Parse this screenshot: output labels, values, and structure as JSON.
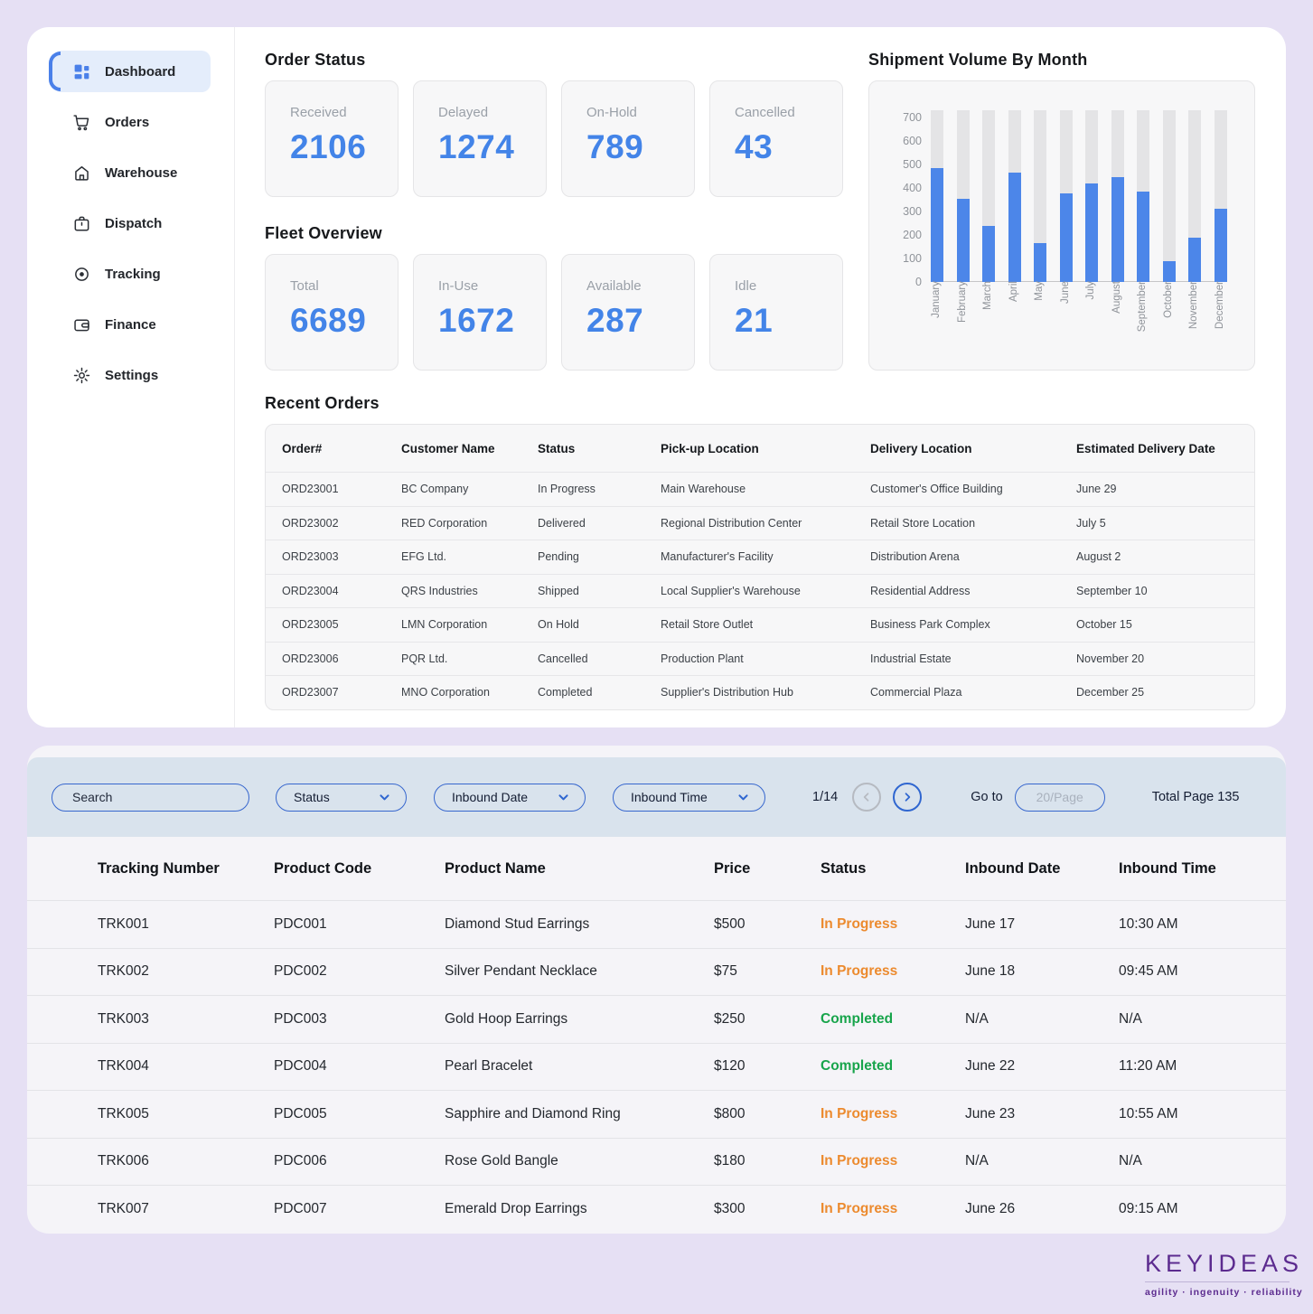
{
  "sidebar": {
    "items": [
      {
        "label": "Dashboard",
        "icon": "dashboard-icon",
        "active": true
      },
      {
        "label": "Orders",
        "icon": "cart-icon",
        "active": false
      },
      {
        "label": "Warehouse",
        "icon": "warehouse-icon",
        "active": false
      },
      {
        "label": "Dispatch",
        "icon": "briefcase-icon",
        "active": false
      },
      {
        "label": "Tracking",
        "icon": "tracking-icon",
        "active": false
      },
      {
        "label": "Finance",
        "icon": "wallet-icon",
        "active": false
      },
      {
        "label": "Settings",
        "icon": "gear-icon",
        "active": false
      }
    ]
  },
  "order_status": {
    "title": "Order Status",
    "cards": [
      {
        "label": "Received",
        "value": "2106"
      },
      {
        "label": "Delayed",
        "value": "1274"
      },
      {
        "label": "On-Hold",
        "value": "789"
      },
      {
        "label": "Cancelled",
        "value": "43"
      }
    ]
  },
  "fleet_overview": {
    "title": "Fleet Overview",
    "cards": [
      {
        "label": "Total",
        "value": "6689"
      },
      {
        "label": "In-Use",
        "value": "1672"
      },
      {
        "label": "Available",
        "value": "287"
      },
      {
        "label": "Idle",
        "value": "21"
      }
    ]
  },
  "chart_data": {
    "type": "bar",
    "title": "Shipment Volume By Month",
    "categories": [
      "January",
      "February",
      "March",
      "April",
      "May",
      "June",
      "July",
      "August",
      "September",
      "October",
      "November",
      "December"
    ],
    "values": [
      485,
      355,
      240,
      465,
      165,
      375,
      420,
      445,
      385,
      90,
      190,
      310
    ],
    "xlabel": "",
    "ylabel": "",
    "ylim": [
      0,
      730
    ],
    "yticks": [
      0,
      100,
      200,
      300,
      400,
      500,
      600,
      700
    ],
    "track_max": 730,
    "bar_color": "#4C86E9",
    "track_color": "#E4E4E6",
    "grid": false,
    "legend_position": "none"
  },
  "recent_orders": {
    "title": "Recent Orders",
    "columns": [
      "Order#",
      "Customer Name",
      "Status",
      "Pick-up Location",
      "Delivery Location",
      "Estimated Delivery Date"
    ],
    "rows": [
      {
        "order": "ORD23001",
        "customer": "BC Company",
        "status": "In Progress",
        "pickup": "Main Warehouse",
        "delivery": "Customer's Office Building",
        "eta": "June 29"
      },
      {
        "order": "ORD23002",
        "customer": "RED Corporation",
        "status": "Delivered",
        "pickup": "Regional Distribution Center",
        "delivery": "Retail Store Location",
        "eta": "July 5"
      },
      {
        "order": "ORD23003",
        "customer": "EFG Ltd.",
        "status": "Pending",
        "pickup": "Manufacturer's Facility",
        "delivery": "Distribution Arena",
        "eta": "August 2"
      },
      {
        "order": "ORD23004",
        "customer": "QRS Industries",
        "status": "Shipped",
        "pickup": "Local Supplier's Warehouse",
        "delivery": "Residential Address",
        "eta": "September 10"
      },
      {
        "order": "ORD23005",
        "customer": "LMN Corporation",
        "status": "On Hold",
        "pickup": "Retail Store Outlet",
        "delivery": "Business Park Complex",
        "eta": "October 15"
      },
      {
        "order": "ORD23006",
        "customer": "PQR Ltd.",
        "status": "Cancelled",
        "pickup": "Production Plant",
        "delivery": "Industrial Estate",
        "eta": "November 20"
      },
      {
        "order": "ORD23007",
        "customer": "MNO Corporation",
        "status": "Completed",
        "pickup": "Supplier's Distribution Hub",
        "delivery": "Commercial Plaza",
        "eta": "December 25"
      }
    ]
  },
  "filter_bar": {
    "search_placeholder": "Search",
    "dropdowns": [
      "Status",
      "Inbound Date",
      "Inbound Time"
    ],
    "page_indicator": "1/14",
    "goto_label": "Go to",
    "per_page_placeholder": "20/Page",
    "total_label": "Total Page 135"
  },
  "tracking_table": {
    "columns": [
      "Tracking Number",
      "Product Code",
      "Product Name",
      "Price",
      "Status",
      "Inbound Date",
      "Inbound Time"
    ],
    "rows": [
      {
        "tracking": "TRK001",
        "code": "PDC001",
        "name": "Diamond Stud Earrings",
        "price": "$500",
        "status": "In Progress",
        "status_color": "#EC8A2E",
        "date": "June 17",
        "time": "10:30 AM"
      },
      {
        "tracking": "TRK002",
        "code": "PDC002",
        "name": "Silver Pendant Necklace",
        "price": "$75",
        "status": "In Progress",
        "status_color": "#EC8A2E",
        "date": "June 18",
        "time": "09:45 AM"
      },
      {
        "tracking": "TRK003",
        "code": "PDC003",
        "name": "Gold Hoop Earrings",
        "price": "$250",
        "status": "Completed",
        "status_color": "#17A44B",
        "date": "N/A",
        "time": "N/A"
      },
      {
        "tracking": "TRK004",
        "code": "PDC004",
        "name": "Pearl Bracelet",
        "price": "$120",
        "status": "Completed",
        "status_color": "#17A44B",
        "date": "June 22",
        "time": "11:20 AM"
      },
      {
        "tracking": "TRK005",
        "code": "PDC005",
        "name": "Sapphire and Diamond Ring",
        "price": "$800",
        "status": "In Progress",
        "status_color": "#EC8A2E",
        "date": "June 23",
        "time": "10:55 AM"
      },
      {
        "tracking": "TRK006",
        "code": "PDC006",
        "name": "Rose Gold Bangle",
        "price": "$180",
        "status": "In Progress",
        "status_color": "#EC8A2E",
        "date": "N/A",
        "time": "N/A"
      },
      {
        "tracking": "TRK007",
        "code": "PDC007",
        "name": "Emerald Drop Earrings",
        "price": "$300",
        "status": "In Progress",
        "status_color": "#EC8A2E",
        "date": "June 26",
        "time": "09:15 AM"
      }
    ]
  },
  "logo": {
    "text": "KEYIDEAS",
    "tagline": "agility  ·  ingenuity  ·  reliability"
  },
  "colors": {
    "accent_blue": "#4384E8",
    "status_orange": "#EC8A2E",
    "status_green": "#17A44B",
    "brand_purple": "#5C2B8F",
    "page_background": "#E6E0F4",
    "filter_strip": "#D9E3ED"
  }
}
